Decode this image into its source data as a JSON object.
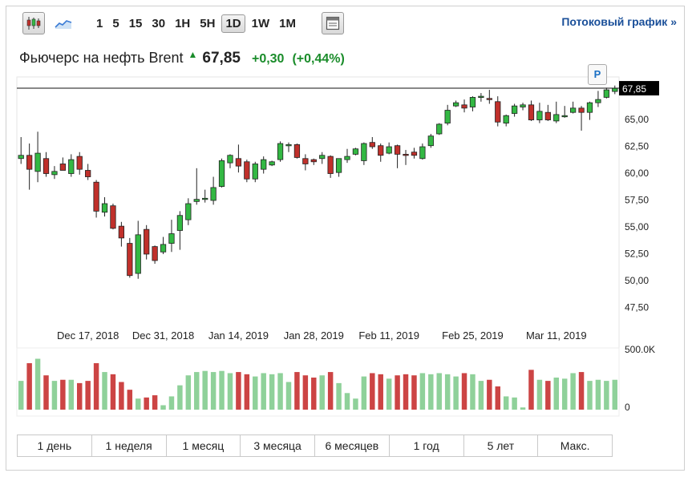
{
  "toolbar": {
    "periods": [
      "1",
      "5",
      "15",
      "30",
      "1H",
      "5H",
      "1D",
      "1W",
      "1M"
    ],
    "active_period": "1D",
    "stream_link": "Потоковый график »"
  },
  "header": {
    "name": "Фьючерс на нефть Brent",
    "price": "67,85",
    "change": "+0,30",
    "change_pct": "(+0,44%)"
  },
  "marker_label": "P",
  "ranges": [
    "1 день",
    "1 неделя",
    "1 месяц",
    "3 месяца",
    "6 месяцев",
    "1 год",
    "5 лет",
    "Макс."
  ],
  "colors": {
    "up": "#33b843",
    "down": "#c0302b",
    "vol_up": "#8fd19a",
    "vol_down": "#cc4444",
    "accent": "#1a4f99"
  },
  "chart_data": {
    "type": "candlestick",
    "y_ticks": [
      "47,50",
      "50,00",
      "52,50",
      "55,00",
      "57,50",
      "60,00",
      "62,50",
      "65,00"
    ],
    "ylim": [
      45.9,
      68.9
    ],
    "x_ticks": [
      {
        "label": "Dec 17, 2018",
        "index": 8
      },
      {
        "label": "Dec 31, 2018",
        "index": 17
      },
      {
        "label": "Jan 14, 2019",
        "index": 26
      },
      {
        "label": "Jan 28, 2019",
        "index": 35
      },
      {
        "label": "Feb 11, 2019",
        "index": 44
      },
      {
        "label": "Feb 25, 2019",
        "index": 54
      },
      {
        "label": "Mar 11, 2019",
        "index": 64
      }
    ],
    "last_price_label": "67,85",
    "last_price": 67.85,
    "volume_max_label": "500.0K",
    "volume_min_label": "0",
    "volume_max": 500000,
    "candles": [
      {
        "o": 61.3,
        "h": 63.3,
        "l": 60.8,
        "c": 61.6,
        "v": 260000
      },
      {
        "o": 61.6,
        "h": 62.7,
        "l": 58.4,
        "c": 60.3,
        "v": 420000
      },
      {
        "o": 60.1,
        "h": 63.8,
        "l": 59.1,
        "c": 61.8,
        "v": 460000
      },
      {
        "o": 61.3,
        "h": 61.9,
        "l": 59.6,
        "c": 59.9,
        "v": 310000
      },
      {
        "o": 59.8,
        "h": 60.6,
        "l": 59.4,
        "c": 60.1,
        "v": 260000
      },
      {
        "o": 60.8,
        "h": 61.4,
        "l": 60.2,
        "c": 60.2,
        "v": 270000
      },
      {
        "o": 59.9,
        "h": 61.7,
        "l": 59.6,
        "c": 61.2,
        "v": 270000
      },
      {
        "o": 61.5,
        "h": 61.9,
        "l": 59.8,
        "c": 60.3,
        "v": 240000
      },
      {
        "o": 60.2,
        "h": 60.8,
        "l": 59.3,
        "c": 59.6,
        "v": 260000
      },
      {
        "o": 59.1,
        "h": 59.3,
        "l": 55.8,
        "c": 56.4,
        "v": 420000
      },
      {
        "o": 56.3,
        "h": 57.7,
        "l": 55.9,
        "c": 57.1,
        "v": 340000
      },
      {
        "o": 56.9,
        "h": 57.1,
        "l": 54.7,
        "c": 54.8,
        "v": 320000
      },
      {
        "o": 55.0,
        "h": 55.4,
        "l": 53.1,
        "c": 53.9,
        "v": 250000
      },
      {
        "o": 53.4,
        "h": 53.9,
        "l": 50.2,
        "c": 50.4,
        "v": 180000
      },
      {
        "o": 50.6,
        "h": 55.5,
        "l": 50.1,
        "c": 54.2,
        "v": 100000
      },
      {
        "o": 54.7,
        "h": 55.1,
        "l": 51.9,
        "c": 52.4,
        "v": 110000
      },
      {
        "o": 53.1,
        "h": 53.2,
        "l": 51.5,
        "c": 51.8,
        "v": 130000
      },
      {
        "o": 52.6,
        "h": 54.0,
        "l": 52.4,
        "c": 53.3,
        "v": 40000
      },
      {
        "o": 53.4,
        "h": 55.6,
        "l": 52.6,
        "c": 54.3,
        "v": 120000
      },
      {
        "o": 54.6,
        "h": 56.4,
        "l": 52.8,
        "c": 56.0,
        "v": 220000
      },
      {
        "o": 55.6,
        "h": 57.6,
        "l": 55.1,
        "c": 57.1,
        "v": 310000
      },
      {
        "o": 57.3,
        "h": 60.4,
        "l": 57.0,
        "c": 57.5,
        "v": 340000
      },
      {
        "o": 57.6,
        "h": 58.4,
        "l": 57.2,
        "c": 57.6,
        "v": 350000
      },
      {
        "o": 57.4,
        "h": 59.6,
        "l": 57.0,
        "c": 58.6,
        "v": 340000
      },
      {
        "o": 58.7,
        "h": 61.3,
        "l": 58.6,
        "c": 61.1,
        "v": 350000
      },
      {
        "o": 60.9,
        "h": 61.7,
        "l": 60.4,
        "c": 61.6,
        "v": 330000
      },
      {
        "o": 61.3,
        "h": 62.6,
        "l": 60.0,
        "c": 60.6,
        "v": 340000
      },
      {
        "o": 61.0,
        "h": 61.2,
        "l": 59.1,
        "c": 59.4,
        "v": 320000
      },
      {
        "o": 59.4,
        "h": 61.0,
        "l": 59.1,
        "c": 60.8,
        "v": 300000
      },
      {
        "o": 60.3,
        "h": 61.5,
        "l": 59.9,
        "c": 61.2,
        "v": 330000
      },
      {
        "o": 60.7,
        "h": 61.1,
        "l": 60.6,
        "c": 61.0,
        "v": 320000
      },
      {
        "o": 61.2,
        "h": 62.9,
        "l": 61.0,
        "c": 62.7,
        "v": 330000
      },
      {
        "o": 62.5,
        "h": 62.8,
        "l": 61.9,
        "c": 62.6,
        "v": 250000
      },
      {
        "o": 62.6,
        "h": 62.7,
        "l": 61.3,
        "c": 61.4,
        "v": 340000
      },
      {
        "o": 61.3,
        "h": 61.7,
        "l": 60.2,
        "c": 60.8,
        "v": 310000
      },
      {
        "o": 61.2,
        "h": 61.3,
        "l": 60.7,
        "c": 61.0,
        "v": 290000
      },
      {
        "o": 61.3,
        "h": 61.9,
        "l": 60.8,
        "c": 61.6,
        "v": 310000
      },
      {
        "o": 61.5,
        "h": 61.6,
        "l": 59.5,
        "c": 59.9,
        "v": 340000
      },
      {
        "o": 60.0,
        "h": 61.3,
        "l": 59.6,
        "c": 61.3,
        "v": 240000
      },
      {
        "o": 61.2,
        "h": 62.2,
        "l": 60.9,
        "c": 61.5,
        "v": 150000
      },
      {
        "o": 61.7,
        "h": 62.3,
        "l": 61.6,
        "c": 62.2,
        "v": 100000
      },
      {
        "o": 61.1,
        "h": 62.8,
        "l": 60.7,
        "c": 62.7,
        "v": 300000
      },
      {
        "o": 62.8,
        "h": 63.3,
        "l": 62.2,
        "c": 62.4,
        "v": 330000
      },
      {
        "o": 62.5,
        "h": 62.7,
        "l": 61.0,
        "c": 61.6,
        "v": 320000
      },
      {
        "o": 61.8,
        "h": 62.8,
        "l": 61.7,
        "c": 62.4,
        "v": 280000
      },
      {
        "o": 62.5,
        "h": 62.6,
        "l": 60.4,
        "c": 61.7,
        "v": 310000
      },
      {
        "o": 61.7,
        "h": 62.1,
        "l": 60.7,
        "c": 61.6,
        "v": 320000
      },
      {
        "o": 61.9,
        "h": 62.3,
        "l": 61.3,
        "c": 61.6,
        "v": 310000
      },
      {
        "o": 61.3,
        "h": 62.7,
        "l": 61.2,
        "c": 62.4,
        "v": 330000
      },
      {
        "o": 62.5,
        "h": 63.6,
        "l": 62.3,
        "c": 63.4,
        "v": 320000
      },
      {
        "o": 63.6,
        "h": 64.6,
        "l": 63.5,
        "c": 64.5,
        "v": 330000
      },
      {
        "o": 64.6,
        "h": 66.3,
        "l": 64.4,
        "c": 65.8,
        "v": 320000
      },
      {
        "o": 66.2,
        "h": 66.7,
        "l": 66.1,
        "c": 66.5,
        "v": 300000
      },
      {
        "o": 66.3,
        "h": 66.8,
        "l": 65.6,
        "c": 66.0,
        "v": 330000
      },
      {
        "o": 66.1,
        "h": 67.1,
        "l": 65.7,
        "c": 67.0,
        "v": 320000
      },
      {
        "o": 67.1,
        "h": 67.4,
        "l": 66.6,
        "c": 67.1,
        "v": 260000
      },
      {
        "o": 66.9,
        "h": 67.7,
        "l": 66.4,
        "c": 66.8,
        "v": 270000
      },
      {
        "o": 66.6,
        "h": 67.1,
        "l": 64.3,
        "c": 64.7,
        "v": 210000
      },
      {
        "o": 64.6,
        "h": 65.4,
        "l": 64.3,
        "c": 65.3,
        "v": 120000
      },
      {
        "o": 65.5,
        "h": 66.4,
        "l": 65.2,
        "c": 66.2,
        "v": 110000
      },
      {
        "o": 66.1,
        "h": 66.5,
        "l": 65.8,
        "c": 66.3,
        "v": 20000
      },
      {
        "o": 66.3,
        "h": 66.7,
        "l": 64.8,
        "c": 64.9,
        "v": 360000
      },
      {
        "o": 64.9,
        "h": 66.5,
        "l": 64.6,
        "c": 65.7,
        "v": 270000
      },
      {
        "o": 65.6,
        "h": 66.3,
        "l": 64.8,
        "c": 64.9,
        "v": 260000
      },
      {
        "o": 64.8,
        "h": 66.6,
        "l": 64.6,
        "c": 65.4,
        "v": 290000
      },
      {
        "o": 65.3,
        "h": 66.2,
        "l": 65.1,
        "c": 65.3,
        "v": 280000
      },
      {
        "o": 65.6,
        "h": 66.6,
        "l": 65.5,
        "c": 66.0,
        "v": 330000
      },
      {
        "o": 66.0,
        "h": 66.2,
        "l": 63.9,
        "c": 65.6,
        "v": 340000
      },
      {
        "o": 65.6,
        "h": 66.6,
        "l": 64.9,
        "c": 66.5,
        "v": 260000
      },
      {
        "o": 66.5,
        "h": 67.6,
        "l": 66.1,
        "c": 66.8,
        "v": 270000
      },
      {
        "o": 67.0,
        "h": 67.9,
        "l": 66.9,
        "c": 67.7,
        "v": 260000
      },
      {
        "o": 67.55,
        "h": 68.1,
        "l": 67.3,
        "c": 67.85,
        "v": 270000
      }
    ]
  }
}
